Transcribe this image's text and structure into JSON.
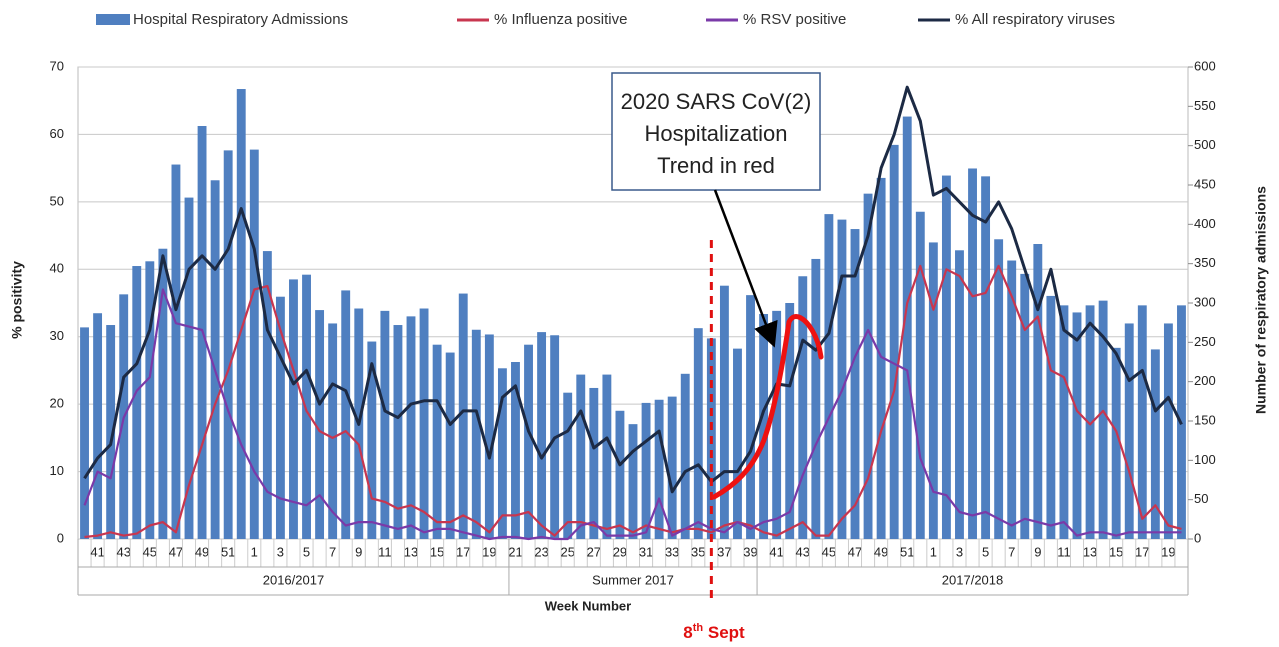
{
  "chart_data": {
    "type": "combo",
    "categories": [
      null,
      "41",
      null,
      "43",
      null,
      "45",
      null,
      "47",
      null,
      "49",
      null,
      "51",
      null,
      "1",
      null,
      "3",
      null,
      "5",
      null,
      "7",
      null,
      "9",
      null,
      "11",
      null,
      "13",
      null,
      "15",
      null,
      "17",
      null,
      "19",
      null,
      "21",
      null,
      "23",
      null,
      "25",
      null,
      "27",
      null,
      "29",
      null,
      "31",
      null,
      "33",
      null,
      "35",
      null,
      "37",
      null,
      "39",
      null,
      "41",
      null,
      "43",
      null,
      "45",
      null,
      "47",
      null,
      "49",
      null,
      "51",
      null,
      "1",
      null,
      "3",
      null,
      "5",
      null,
      "7",
      null,
      "9",
      null,
      "11",
      null,
      "13",
      null,
      "15",
      null,
      "17",
      null,
      "19",
      null
    ],
    "category_groups": [
      "2016/2017",
      "Summer 2017",
      "2017/2018"
    ],
    "x_label": "Week Number",
    "y_label": "% positivity",
    "y2_label": "Number of respiratory admissions",
    "ylim": [
      0,
      70
    ],
    "yticks": [
      0,
      10,
      20,
      30,
      40,
      50,
      60,
      70
    ],
    "y2lim": [
      0,
      600
    ],
    "y2ticks": [
      0,
      50,
      100,
      150,
      200,
      250,
      300,
      350,
      400,
      450,
      500,
      550,
      600
    ],
    "grid": true,
    "series": [
      {
        "name": "Hospital Respiratory Admissions",
        "type": "bar",
        "axis": "y2",
        "color": "#4f7fc0",
        "values": [
          269,
          287,
          272,
          311,
          347,
          353,
          369,
          476,
          434,
          525,
          456,
          494,
          572,
          495,
          366,
          308,
          330,
          336,
          291,
          274,
          316,
          293,
          251,
          290,
          272,
          283,
          293,
          247,
          237,
          312,
          266,
          260,
          217,
          225,
          247,
          263,
          259,
          186,
          209,
          192,
          209,
          163,
          146,
          173,
          177,
          181,
          210,
          268,
          255,
          322,
          242,
          310,
          286,
          290,
          300,
          334,
          356,
          413,
          406,
          394,
          439,
          459,
          501,
          537,
          416,
          377,
          462,
          367,
          471,
          461,
          381,
          354,
          337,
          375,
          309,
          297,
          288,
          297,
          303,
          243,
          274,
          297,
          241,
          274,
          297
        ]
      },
      {
        "name": "% Influenza positive",
        "type": "line",
        "color": "#c8364f",
        "values": [
          0.3,
          0.5,
          1,
          0.5,
          0.8,
          2,
          2.5,
          1,
          8,
          14,
          20,
          25,
          31,
          37,
          37.5,
          31,
          25,
          19,
          16,
          15,
          16,
          14,
          6,
          5.5,
          4.5,
          5,
          4,
          2.5,
          2.5,
          3.5,
          2.5,
          1,
          3.5,
          3.5,
          4,
          2,
          0.5,
          2.5,
          2.5,
          2,
          1.5,
          2,
          1,
          2,
          1.5,
          1,
          1.5,
          1.5,
          1,
          2,
          2.5,
          2,
          1,
          0.5,
          1.5,
          2.5,
          0.5,
          0.5,
          3,
          5,
          9,
          16,
          22,
          35,
          40.5,
          34,
          40,
          39,
          36,
          36.5,
          40.5,
          36,
          31,
          33,
          25,
          24,
          19,
          17,
          19,
          16,
          10,
          3,
          5,
          2,
          1.5
        ]
      },
      {
        "name": "% RSV positive",
        "type": "line",
        "color": "#7a3aa8",
        "values": [
          5,
          10,
          9,
          18,
          22,
          24,
          37,
          32,
          31.5,
          31,
          25,
          19,
          14,
          10,
          7,
          6,
          5.5,
          5,
          6.5,
          4,
          2,
          2.5,
          2.5,
          2,
          1.5,
          2,
          1,
          1.5,
          1.5,
          1,
          0.5,
          0,
          0.3,
          0.3,
          0,
          0.3,
          0,
          0,
          2,
          2.5,
          0.5,
          0.5,
          0.5,
          1,
          6,
          0.5,
          1.5,
          2.5,
          1.5,
          1,
          2.5,
          1.5,
          2.5,
          3,
          4,
          9.5,
          14,
          18,
          22,
          27,
          31,
          27,
          26,
          25,
          12,
          7,
          6.5,
          4,
          3.5,
          4,
          3,
          2,
          3,
          2.5,
          2,
          2.5,
          0.5,
          1,
          1,
          0.5,
          1,
          1,
          1,
          1,
          1
        ]
      },
      {
        "name": "% All respiratory viruses",
        "type": "line",
        "color": "#1c2a44",
        "values": [
          9,
          12,
          14,
          24,
          26,
          31,
          42,
          34,
          40,
          42,
          40,
          43,
          49,
          43,
          31,
          27,
          23,
          25,
          20,
          23,
          22,
          17,
          26,
          19,
          18,
          20,
          20.5,
          20.5,
          17,
          19,
          19,
          12,
          21,
          22.7,
          16,
          12,
          15,
          16,
          19,
          13.5,
          15,
          11,
          13,
          14.5,
          16,
          7,
          10,
          11,
          8.5,
          10,
          10,
          13,
          19,
          23,
          22.7,
          29.5,
          28,
          30.5,
          39,
          39,
          45,
          55,
          60,
          67,
          62,
          51,
          52,
          50,
          48,
          47,
          50,
          46,
          40,
          34,
          40,
          31,
          29.5,
          32,
          30,
          27.5,
          23.5,
          25,
          19,
          21,
          17
        ]
      }
    ],
    "annotations": {
      "box_lines": [
        "2020 SARS CoV(2)",
        "Hospitalization",
        "Trend in red"
      ],
      "date_label": [
        "8",
        "th",
        " Sept"
      ]
    }
  }
}
